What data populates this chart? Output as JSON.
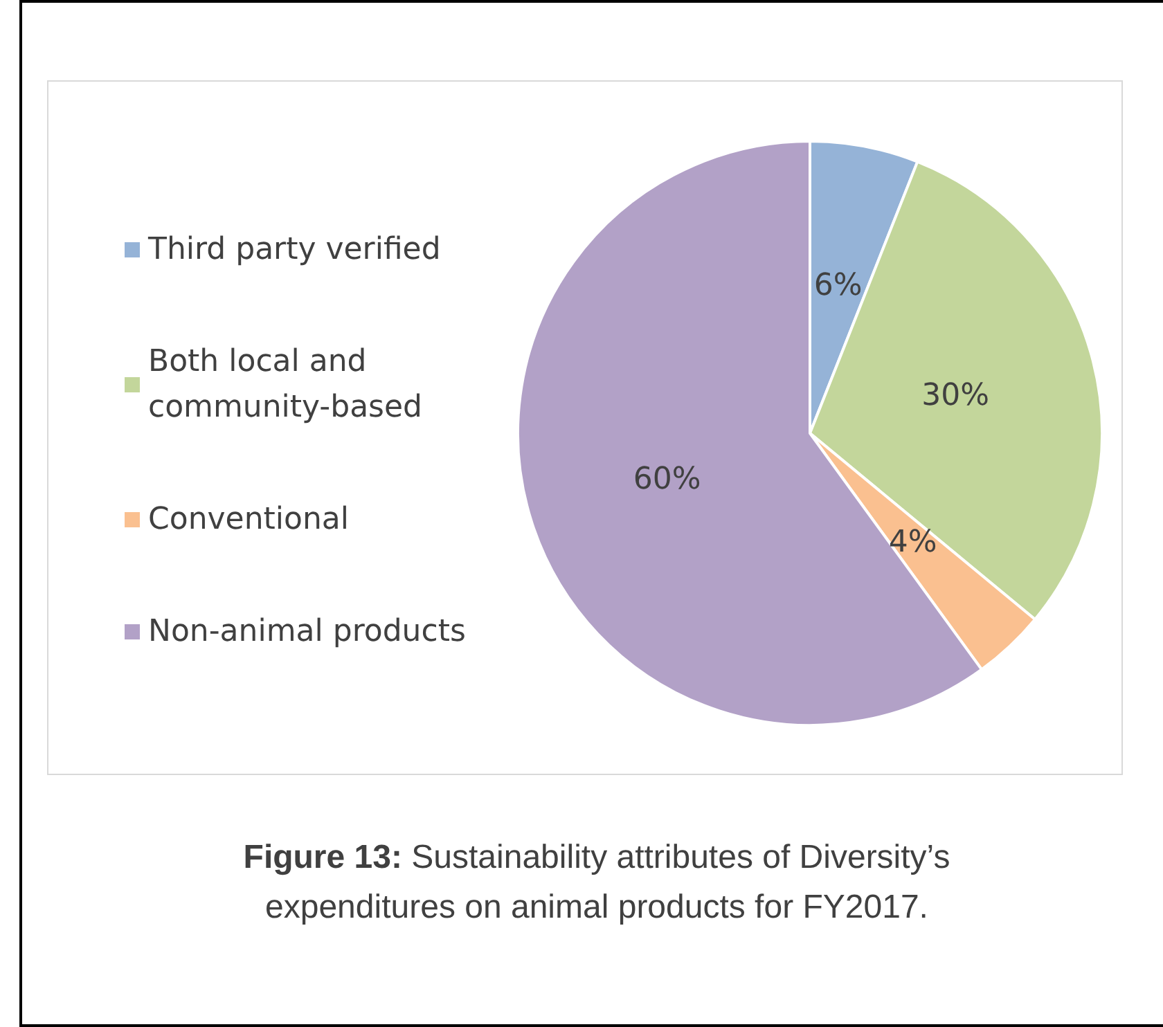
{
  "chart_data": {
    "type": "pie",
    "categories": [
      "Third party verified",
      "Both local and community-based",
      "Conventional",
      "Non-animal products"
    ],
    "values": [
      6,
      30,
      4,
      60
    ],
    "colors": [
      "#95b3d7",
      "#c3d69b",
      "#fac090",
      "#b2a1c7"
    ],
    "value_labels": [
      "6%",
      "30%",
      "4%",
      "60%"
    ],
    "legend": "left",
    "annotations": [
      "Figure 13: Sustainability attributes of Diversity’s expenditures on animal products for FY2017."
    ]
  }
}
